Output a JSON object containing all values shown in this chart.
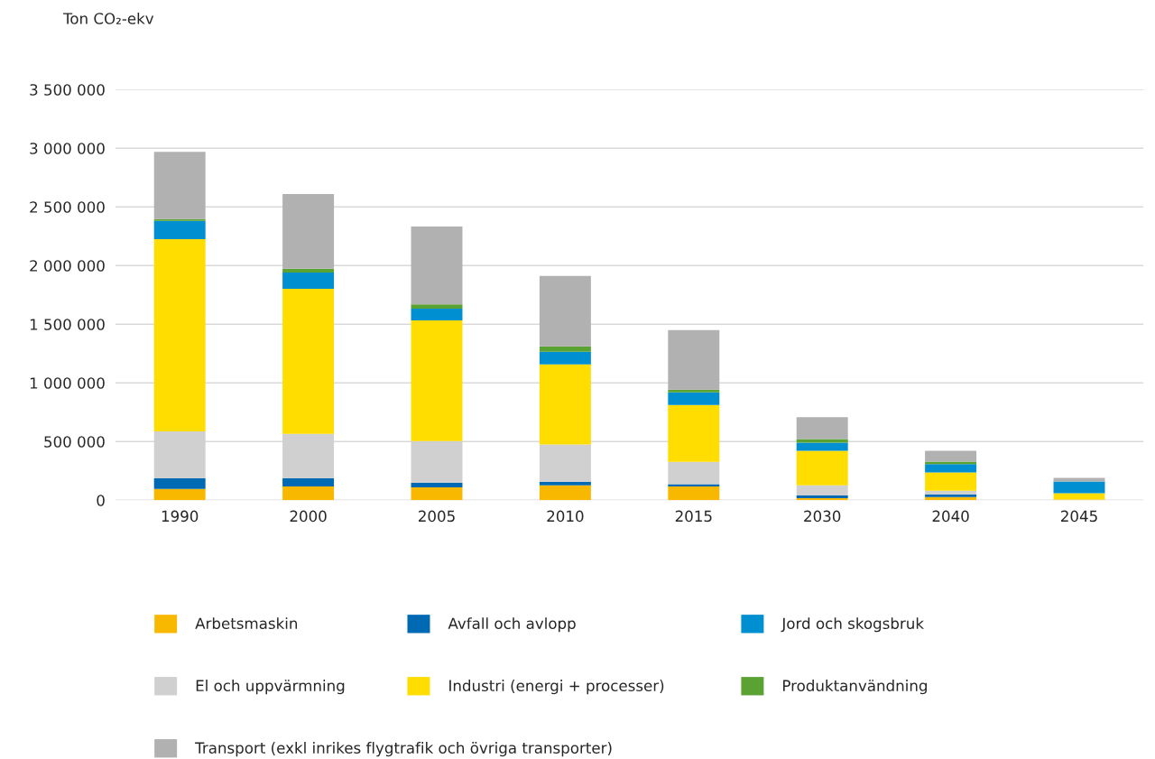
{
  "chart_data": {
    "type": "bar",
    "stacked": true,
    "ylabel": "Ton CO₂-ekv",
    "categories": [
      "1990",
      "2000",
      "2005",
      "2010",
      "2015",
      "2030",
      "2040",
      "2045"
    ],
    "series": [
      {
        "name": "Arbetsmaskin",
        "color": "#f9b800",
        "values": [
          95000,
          118000,
          110000,
          126000,
          118000,
          18000,
          26000,
          3000
        ]
      },
      {
        "name": "Avfall och avlopp",
        "color": "#0069b4",
        "values": [
          92000,
          69000,
          38000,
          31000,
          18000,
          23000,
          23000,
          0
        ]
      },
      {
        "name": "El och uppvärmning",
        "color": "#d0d0d0",
        "values": [
          400000,
          379000,
          356000,
          318000,
          190000,
          85000,
          31000,
          3000
        ]
      },
      {
        "name": "Industri (energi + processer)",
        "color": "#ffdd00",
        "values": [
          1638000,
          1236000,
          1028000,
          682000,
          485000,
          294000,
          157000,
          54000
        ]
      },
      {
        "name": "Jord och skogsbruk",
        "color": "#008fd0",
        "values": [
          156000,
          138000,
          100000,
          108000,
          108000,
          70000,
          70000,
          100000
        ]
      },
      {
        "name": "Produktanvändning",
        "color": "#5aa332",
        "values": [
          15000,
          33000,
          38000,
          46000,
          23000,
          31000,
          21000,
          0
        ]
      },
      {
        "name": "Transport (exkl inrikes flygtrafik och övriga transporter)",
        "color": "#b1b1b1",
        "values": [
          574000,
          636000,
          662000,
          600000,
          508000,
          186000,
          93000,
          31000
        ]
      }
    ],
    "ylim": [
      0,
      3500000
    ],
    "yticks": [
      0,
      {
        "value": 500000,
        "label": "500 000"
      },
      {
        "value": 1000000,
        "label": "1 000 000"
      },
      {
        "value": 1500000,
        "label": "1 500 000"
      },
      {
        "value": 2000000,
        "label": "2 000 000"
      },
      {
        "value": 2500000,
        "label": "2 500 000"
      },
      {
        "value": 3000000,
        "label": "3 000 000"
      },
      {
        "value": 3500000,
        "label": "3 500 000"
      }
    ],
    "grid": "y",
    "legend": "bottom"
  }
}
